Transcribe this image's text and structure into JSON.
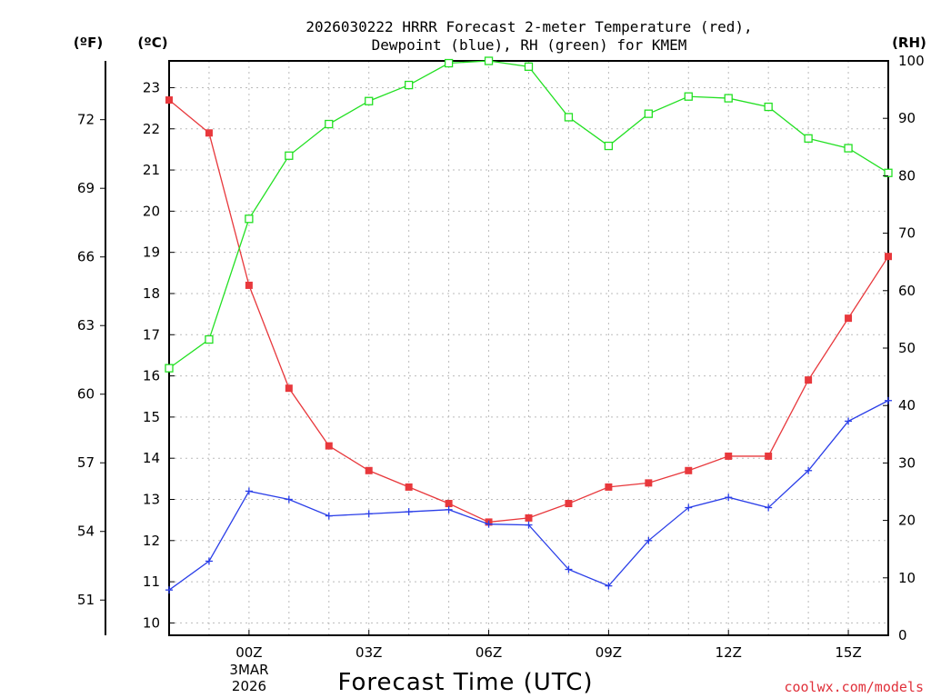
{
  "chart_data": {
    "type": "line",
    "title_line1": "2026030222 HRRR Forecast 2-meter Temperature (red),",
    "title_line2": "Dewpoint (blue), RH (green) for KMEM",
    "xlabel": "Forecast Time (UTC)",
    "axis_label_f": "(ºF)",
    "axis_label_c": "(ºC)",
    "axis_label_rh": "(RH)",
    "credit": "coolwx.com/models",
    "x_hours": [
      -2,
      -1,
      0,
      1,
      2,
      3,
      4,
      5,
      6,
      7,
      8,
      9,
      10,
      11,
      12,
      13,
      14,
      15,
      16
    ],
    "xlim": [
      -2,
      16
    ],
    "x_ticks": [
      {
        "hour": 0,
        "label": "00Z"
      },
      {
        "hour": 3,
        "label": "03Z"
      },
      {
        "hour": 6,
        "label": "06Z"
      },
      {
        "hour": 9,
        "label": "09Z"
      },
      {
        "hour": 12,
        "label": "12Z"
      },
      {
        "hour": 15,
        "label": "15Z"
      }
    ],
    "date_label_line1": "3MAR",
    "date_label_line2": "2026",
    "ylim_c": [
      9.7,
      23.65
    ],
    "y_ticks_c": [
      "10",
      "11",
      "12",
      "13",
      "14",
      "15",
      "16",
      "17",
      "18",
      "19",
      "20",
      "21",
      "22",
      "23"
    ],
    "y_ticks_f": [
      "51",
      "54",
      "57",
      "60",
      "63",
      "66",
      "69",
      "72"
    ],
    "ylim_rh": [
      0,
      100
    ],
    "y_ticks_rh": [
      "0",
      "10",
      "20",
      "30",
      "40",
      "50",
      "60",
      "70",
      "80",
      "90",
      "100"
    ],
    "series": [
      {
        "name": "Temperature (°C)",
        "color": "#e8383c",
        "marker": "filled-square",
        "axis": "left",
        "values": [
          22.7,
          21.9,
          18.2,
          15.7,
          14.3,
          13.7,
          13.3,
          12.9,
          12.45,
          12.55,
          12.9,
          13.3,
          13.4,
          13.7,
          14.05,
          14.05,
          15.9,
          17.4,
          18.9
        ]
      },
      {
        "name": "Dewpoint (°C)",
        "color": "#2a3ee8",
        "marker": "plus",
        "axis": "left",
        "values": [
          10.8,
          11.5,
          13.2,
          13.0,
          12.6,
          12.65,
          12.7,
          12.75,
          12.4,
          12.38,
          11.3,
          10.9,
          12.0,
          12.8,
          13.05,
          12.8,
          13.7,
          14.9,
          15.4
        ]
      },
      {
        "name": "RH (%)",
        "color": "#22e022",
        "marker": "open-square",
        "axis": "right",
        "values": [
          46.5,
          51.5,
          72.5,
          83.5,
          89.0,
          93.0,
          95.8,
          99.6,
          100,
          99.0,
          90.2,
          85.2,
          90.8,
          93.8,
          93.5,
          92.0,
          86.5,
          84.8,
          80.5
        ]
      }
    ]
  }
}
